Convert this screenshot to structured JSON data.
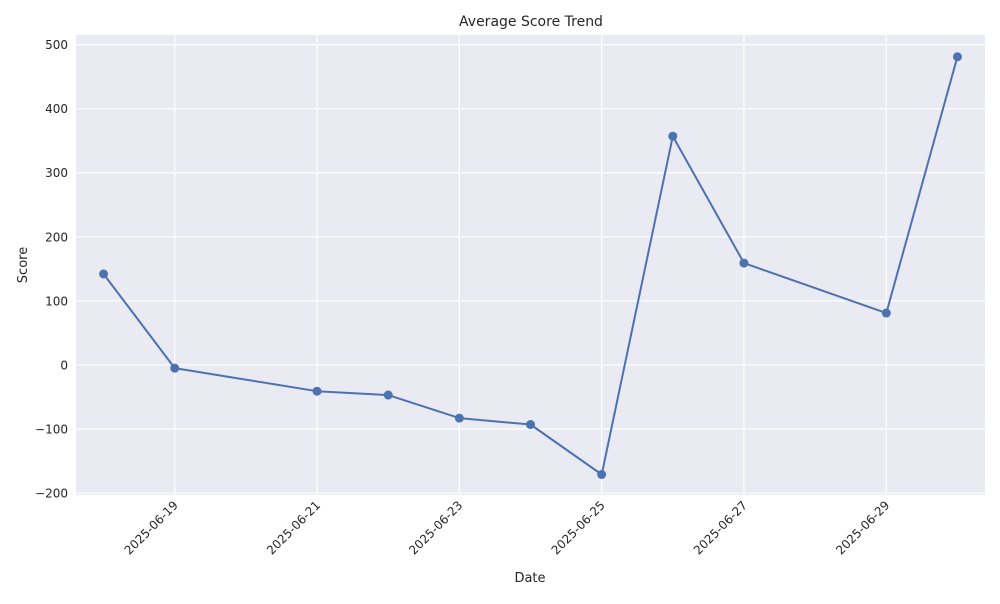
{
  "chart_data": {
    "type": "line",
    "title": "Average Score Trend",
    "xlabel": "Date",
    "ylabel": "Score",
    "x": [
      "2025-06-18",
      "2025-06-19",
      "2025-06-21",
      "2025-06-22",
      "2025-06-23",
      "2025-06-24",
      "2025-06-25",
      "2025-06-26",
      "2025-06-27",
      "2025-06-29",
      "2025-06-30"
    ],
    "series": [
      {
        "values": [
          142,
          -5,
          -41,
          -47,
          -83,
          -93,
          -171,
          357,
          159,
          81,
          481
        ]
      }
    ],
    "xlim": [
      "2025-06-17T14:42",
      "2025-06-30T09:18"
    ],
    "ylim": [
      -203,
      515
    ],
    "x_ticks": [
      "2025-06-19",
      "2025-06-21",
      "2025-06-23",
      "2025-06-25",
      "2025-06-27",
      "2025-06-29"
    ],
    "y_ticks": [
      -200,
      -100,
      0,
      100,
      200,
      300,
      400,
      500
    ],
    "y_tick_labels": [
      "−200",
      "−100",
      "0",
      "100",
      "200",
      "300",
      "400",
      "500"
    ],
    "grid": true,
    "legend": false,
    "colors": {
      "line": "#4c72b0",
      "plot_background": "#eaeaf2",
      "grid": "#ffffff"
    }
  }
}
